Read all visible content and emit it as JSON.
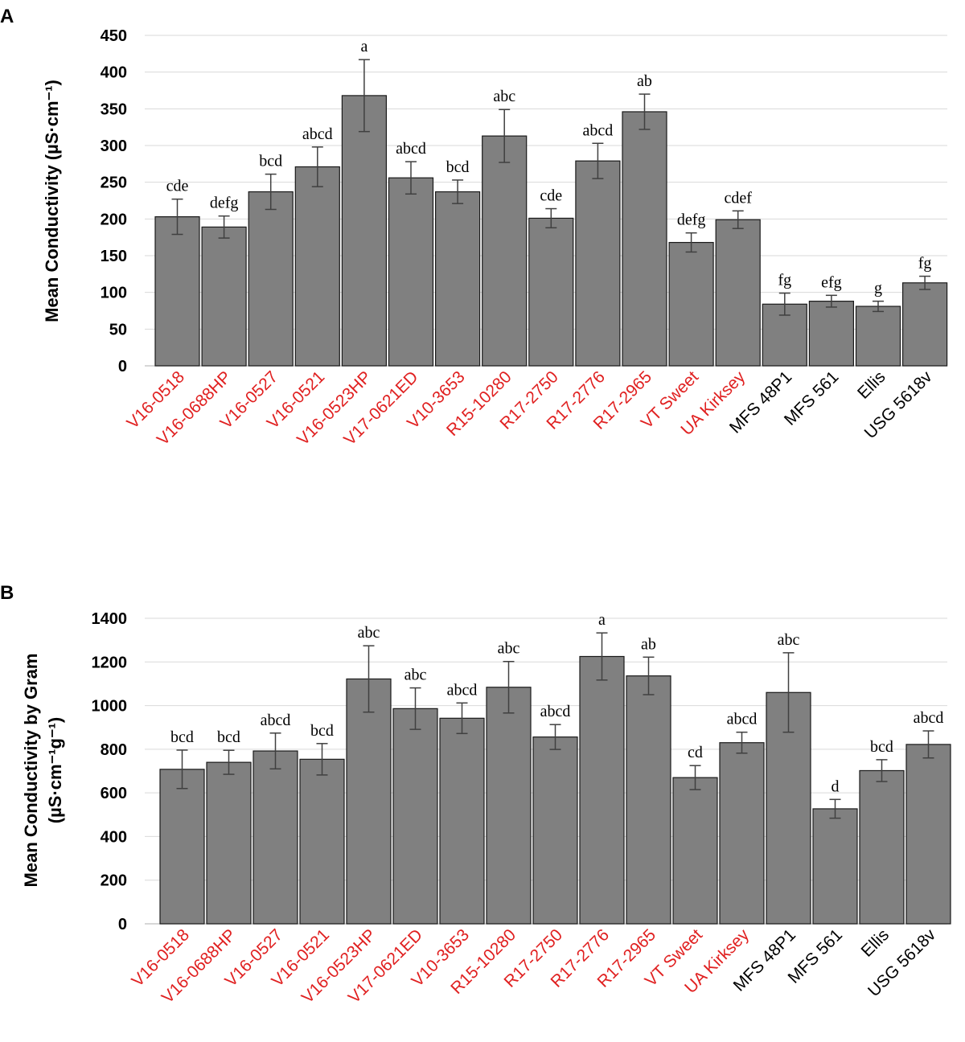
{
  "colors": {
    "bar": "#808080",
    "advanced_line": "#e02020",
    "check": "#000000"
  },
  "chart_data": [
    {
      "panel": "A",
      "type": "bar",
      "ylabel": "Mean Conductivity (µS·cm⁻¹)",
      "ylabel_lines": [
        "Mean Conductivity (µS·cm⁻¹)"
      ],
      "ylim": [
        0,
        450
      ],
      "yticks": [
        0,
        50,
        100,
        150,
        200,
        250,
        300,
        350,
        400,
        450
      ],
      "grid": true,
      "categories": [
        "V16-0518",
        "V16-0688HP",
        "V16-0527",
        "V16-0521",
        "V16-0523HP",
        "V17-0621ED",
        "V10-3653",
        "R15-10280",
        "R17-2750",
        "R17-2776",
        "R17-2965",
        "VT Sweet",
        "UA Kirksey",
        "MFS 48P1",
        "MFS 561",
        "Ellis",
        "USG 5618v"
      ],
      "category_color": [
        "red",
        "red",
        "red",
        "red",
        "red",
        "red",
        "red",
        "red",
        "red",
        "red",
        "red",
        "red",
        "red",
        "black",
        "black",
        "black",
        "black"
      ],
      "values": [
        203,
        189,
        237,
        271,
        368,
        256,
        237,
        313,
        201,
        279,
        346,
        168,
        199,
        84,
        88,
        81,
        113
      ],
      "errors": [
        24,
        15,
        24,
        27,
        49,
        22,
        16,
        36,
        13,
        24,
        24,
        13,
        12,
        15,
        8,
        7,
        9
      ],
      "letters": [
        "cde",
        "defg",
        "bcd",
        "abcd",
        "a",
        "abcd",
        "bcd",
        "abc",
        "cde",
        "abcd",
        "ab",
        "defg",
        "cdef",
        "fg",
        "efg",
        "g",
        "fg"
      ]
    },
    {
      "panel": "B",
      "type": "bar",
      "ylabel": "Mean Conductivity by Gram (µS·cm⁻¹g⁻¹)",
      "ylabel_lines": [
        "Mean Conductivity by Gram",
        "(µS·cm⁻¹g⁻¹)"
      ],
      "ylim": [
        0,
        1400
      ],
      "yticks": [
        0,
        200,
        400,
        600,
        800,
        1000,
        1200,
        1400
      ],
      "grid": true,
      "categories": [
        "V16-0518",
        "V16-0688HP",
        "V16-0527",
        "V16-0521",
        "V16-0523HP",
        "V17-0621ED",
        "V10-3653",
        "R15-10280",
        "R17-2750",
        "R17-2776",
        "R17-2965",
        "VT Sweet",
        "UA Kirksey",
        "MFS 48P1",
        "MFS 561",
        "Ellis",
        "USG 5618v"
      ],
      "category_color": [
        "red",
        "red",
        "red",
        "red",
        "red",
        "red",
        "red",
        "red",
        "red",
        "red",
        "red",
        "red",
        "red",
        "black",
        "black",
        "black",
        "black"
      ],
      "values": [
        708,
        740,
        792,
        754,
        1122,
        986,
        942,
        1084,
        856,
        1225,
        1136,
        670,
        830,
        1060,
        527,
        702,
        822
      ],
      "errors": [
        88,
        55,
        82,
        72,
        152,
        95,
        70,
        118,
        57,
        108,
        86,
        55,
        48,
        182,
        43,
        50,
        62
      ],
      "letters": [
        "bcd",
        "bcd",
        "abcd",
        "bcd",
        "abc",
        "abc",
        "abcd",
        "abc",
        "abcd",
        "a",
        "ab",
        "cd",
        "abcd",
        "abc",
        "d",
        "bcd",
        "abcd"
      ]
    }
  ]
}
